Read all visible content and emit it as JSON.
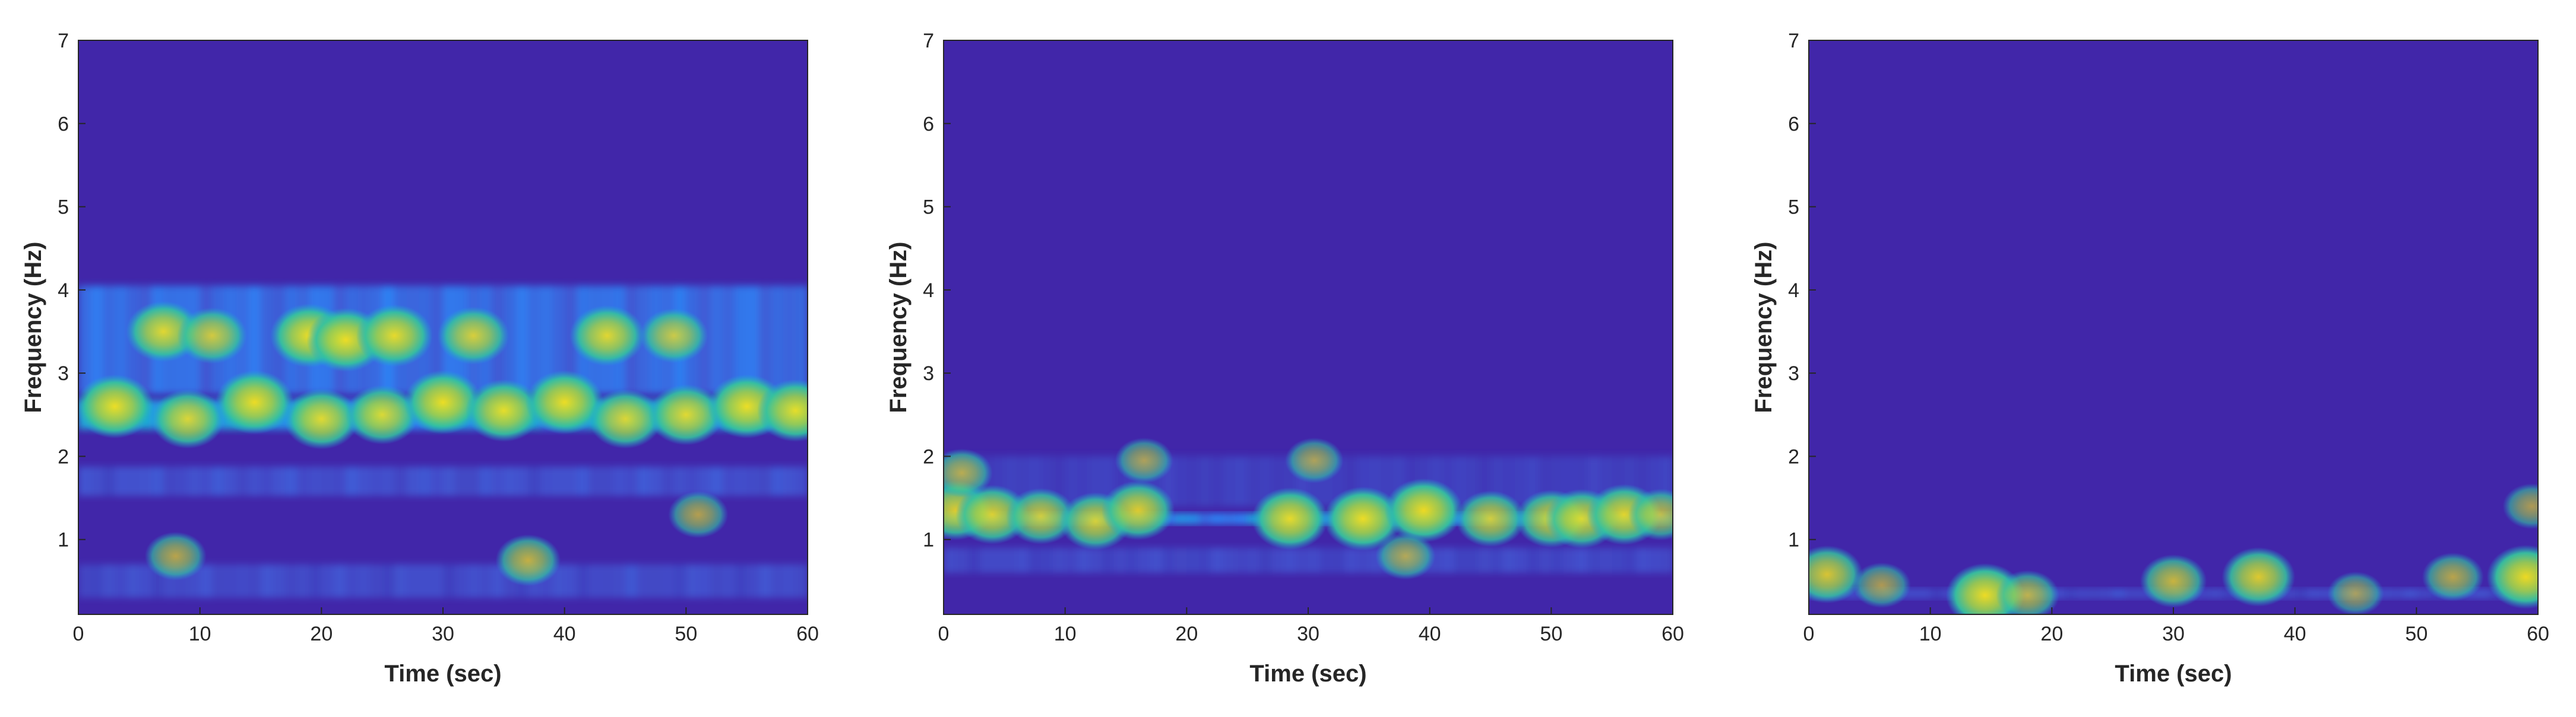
{
  "chart_data": [
    {
      "type": "heatmap",
      "xlabel": "Time (sec)",
      "ylabel": "Frequency (Hz)",
      "xlim": [
        0,
        60
      ],
      "ylim": [
        0.1,
        7
      ],
      "xticks": [
        "0",
        "10",
        "20",
        "30",
        "40",
        "50",
        "60"
      ],
      "yticks": [
        "1",
        "2",
        "3",
        "4",
        "5",
        "6",
        "7"
      ],
      "colormap": [
        "#3e26a8",
        "#4352ce",
        "#2c84f5",
        "#18b8c5",
        "#5fcf6a",
        "#d0c93a",
        "#f6e21c"
      ],
      "background": "#4126a9",
      "bands": [
        {
          "freq": 3.4,
          "width": 1.3,
          "base": 0.32
        },
        {
          "freq": 2.5,
          "width": 0.35,
          "base": 0.5
        },
        {
          "freq": 1.7,
          "width": 0.35,
          "base": 0.2
        },
        {
          "freq": 0.5,
          "width": 0.4,
          "base": 0.18
        }
      ],
      "hotspots": [
        {
          "time": 7,
          "freq": 3.5,
          "intensity": 0.9
        },
        {
          "time": 11,
          "freq": 3.45,
          "intensity": 0.75
        },
        {
          "time": 19,
          "freq": 3.45,
          "intensity": 1.0
        },
        {
          "time": 22,
          "freq": 3.4,
          "intensity": 1.0
        },
        {
          "time": 26,
          "freq": 3.45,
          "intensity": 0.95
        },
        {
          "time": 32.5,
          "freq": 3.45,
          "intensity": 0.8
        },
        {
          "time": 43.5,
          "freq": 3.45,
          "intensity": 0.9
        },
        {
          "time": 49,
          "freq": 3.45,
          "intensity": 0.7
        },
        {
          "time": 3,
          "freq": 2.6,
          "intensity": 1.0
        },
        {
          "time": 9,
          "freq": 2.45,
          "intensity": 0.85
        },
        {
          "time": 14.5,
          "freq": 2.65,
          "intensity": 1.0
        },
        {
          "time": 20,
          "freq": 2.45,
          "intensity": 0.9
        },
        {
          "time": 25,
          "freq": 2.5,
          "intensity": 0.85
        },
        {
          "time": 30,
          "freq": 2.65,
          "intensity": 1.0
        },
        {
          "time": 35,
          "freq": 2.55,
          "intensity": 0.95
        },
        {
          "time": 40,
          "freq": 2.65,
          "intensity": 1.0
        },
        {
          "time": 45,
          "freq": 2.45,
          "intensity": 0.85
        },
        {
          "time": 50,
          "freq": 2.5,
          "intensity": 0.9
        },
        {
          "time": 55,
          "freq": 2.6,
          "intensity": 1.0
        },
        {
          "time": 59,
          "freq": 2.55,
          "intensity": 0.95
        },
        {
          "time": 37,
          "freq": 0.75,
          "intensity": 0.6
        },
        {
          "time": 8,
          "freq": 0.8,
          "intensity": 0.5
        },
        {
          "time": 51,
          "freq": 1.3,
          "intensity": 0.45
        }
      ]
    },
    {
      "type": "heatmap",
      "xlabel": "Time (sec)",
      "ylabel": "Frequency (Hz)",
      "xlim": [
        0,
        60
      ],
      "ylim": [
        0.1,
        7
      ],
      "xticks": [
        "0",
        "10",
        "20",
        "30",
        "40",
        "50",
        "60"
      ],
      "yticks": [
        "1",
        "2",
        "3",
        "4",
        "5",
        "6",
        "7"
      ],
      "colormap": [
        "#3e26a8",
        "#4352ce",
        "#2c84f5",
        "#18b8c5",
        "#5fcf6a",
        "#d0c93a",
        "#f6e21c"
      ],
      "background": "#4126a9",
      "bands": [
        {
          "freq": 1.25,
          "width": 0.13,
          "base": 0.42
        },
        {
          "freq": 1.7,
          "width": 0.6,
          "base": 0.12
        },
        {
          "freq": 0.75,
          "width": 0.3,
          "base": 0.16
        }
      ],
      "hotspots": [
        {
          "time": 1,
          "freq": 1.35,
          "intensity": 0.85
        },
        {
          "time": 4,
          "freq": 1.3,
          "intensity": 0.85
        },
        {
          "time": 8,
          "freq": 1.28,
          "intensity": 0.75
        },
        {
          "time": 12.5,
          "freq": 1.22,
          "intensity": 0.8
        },
        {
          "time": 16,
          "freq": 1.35,
          "intensity": 0.85
        },
        {
          "time": 28.5,
          "freq": 1.25,
          "intensity": 0.95
        },
        {
          "time": 34.5,
          "freq": 1.25,
          "intensity": 1.0
        },
        {
          "time": 39.5,
          "freq": 1.35,
          "intensity": 1.0
        },
        {
          "time": 45,
          "freq": 1.25,
          "intensity": 0.75
        },
        {
          "time": 50,
          "freq": 1.25,
          "intensity": 0.8
        },
        {
          "time": 52.5,
          "freq": 1.25,
          "intensity": 0.85
        },
        {
          "time": 56,
          "freq": 1.3,
          "intensity": 0.9
        },
        {
          "time": 59,
          "freq": 1.3,
          "intensity": 0.6
        },
        {
          "time": 38,
          "freq": 0.8,
          "intensity": 0.45
        },
        {
          "time": 30.5,
          "freq": 1.95,
          "intensity": 0.4
        },
        {
          "time": 16.5,
          "freq": 1.95,
          "intensity": 0.4
        },
        {
          "time": 1.5,
          "freq": 1.8,
          "intensity": 0.5
        }
      ]
    },
    {
      "type": "heatmap",
      "xlabel": "Time (sec)",
      "ylabel": "Frequency (Hz)",
      "xlim": [
        0,
        60
      ],
      "ylim": [
        0.1,
        7
      ],
      "xticks": [
        "0",
        "10",
        "20",
        "30",
        "40",
        "50",
        "60"
      ],
      "yticks": [
        "1",
        "2",
        "3",
        "4",
        "5",
        "6",
        "7"
      ],
      "colormap": [
        "#3e26a8",
        "#4352ce",
        "#2c84f5",
        "#18b8c5",
        "#5fcf6a",
        "#d0c93a",
        "#f6e21c"
      ],
      "background": "#4126a9",
      "bands": [
        {
          "freq": 0.35,
          "width": 0.12,
          "base": 0.18
        }
      ],
      "hotspots": [
        {
          "time": 1.5,
          "freq": 0.58,
          "intensity": 0.8
        },
        {
          "time": 14.5,
          "freq": 0.33,
          "intensity": 1.0
        },
        {
          "time": 18,
          "freq": 0.33,
          "intensity": 0.55
        },
        {
          "time": 30,
          "freq": 0.5,
          "intensity": 0.65
        },
        {
          "time": 37,
          "freq": 0.55,
          "intensity": 0.85
        },
        {
          "time": 53,
          "freq": 0.55,
          "intensity": 0.5
        },
        {
          "time": 59,
          "freq": 0.55,
          "intensity": 1.0
        },
        {
          "time": 59.5,
          "freq": 1.4,
          "intensity": 0.4
        },
        {
          "time": 6,
          "freq": 0.45,
          "intensity": 0.4
        },
        {
          "time": 45,
          "freq": 0.35,
          "intensity": 0.35
        }
      ]
    }
  ]
}
